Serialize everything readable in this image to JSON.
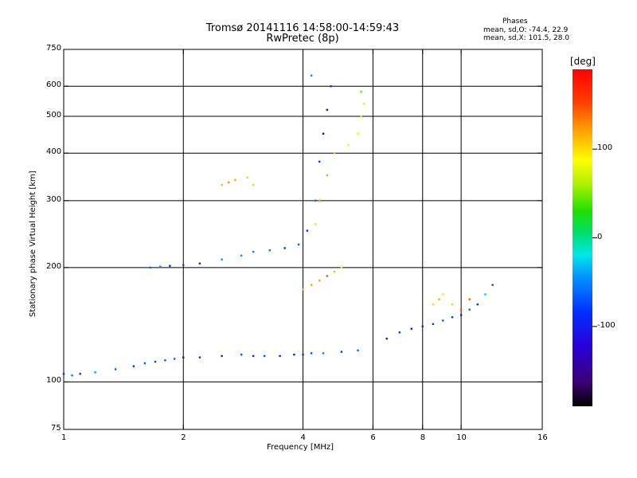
{
  "header": {
    "title": "Tromsø 20141116 14:58:00-14:59:43",
    "subtitle": "RwPretec (8p)"
  },
  "phases": {
    "heading": "Phases",
    "line_o": "mean, sd,O: -74.4, 22.9",
    "line_x": "mean, sd,X: 101.5, 28.0"
  },
  "colorbar": {
    "label": "[deg]",
    "ticks": [
      "100",
      "0",
      "-100"
    ],
    "tick_values": [
      100,
      0,
      -100
    ],
    "range": [
      -190,
      190
    ],
    "colormap": "rainbow"
  },
  "chart_data": {
    "type": "scatter",
    "title": "Tromsø 20141116 14:58:00-14:59:43",
    "subtitle": "RwPretec (8p)",
    "xlabel": "Frequency [MHz]",
    "ylabel": "Stationary phase Virtual Height [km]",
    "x_scale": "log",
    "y_scale": "log",
    "xlim": [
      1,
      16
    ],
    "ylim": [
      75,
      750
    ],
    "xticks": [
      1,
      2,
      4,
      6,
      8,
      10,
      16
    ],
    "xtick_labels": [
      "1",
      "2",
      "4",
      "6",
      "8",
      "10",
      "16"
    ],
    "x_gridlines": [
      2,
      4,
      6,
      8,
      10
    ],
    "yticks": [
      75,
      100,
      200,
      300,
      400,
      500,
      600,
      750
    ],
    "ytick_labels": [
      "75",
      "100",
      "200",
      "300",
      "400",
      "500",
      "600",
      "750"
    ],
    "y_gridlines": [
      100,
      200,
      300,
      400,
      500,
      600
    ],
    "grid": true,
    "color_variable": "phase (deg)",
    "series": [
      {
        "trace": "O-mode",
        "phase_mean": -74.4,
        "phase_sd": 22.9,
        "points": [
          {
            "f": 1.0,
            "h": 105
          },
          {
            "f": 1.05,
            "h": 104
          },
          {
            "f": 1.1,
            "h": 105
          },
          {
            "f": 1.2,
            "h": 106
          },
          {
            "f": 1.35,
            "h": 108
          },
          {
            "f": 1.5,
            "h": 110
          },
          {
            "f": 1.6,
            "h": 112
          },
          {
            "f": 1.7,
            "h": 113
          },
          {
            "f": 1.8,
            "h": 114
          },
          {
            "f": 1.9,
            "h": 115
          },
          {
            "f": 2.0,
            "h": 116
          },
          {
            "f": 2.2,
            "h": 116
          },
          {
            "f": 2.5,
            "h": 117
          },
          {
            "f": 2.8,
            "h": 118
          },
          {
            "f": 3.0,
            "h": 117
          },
          {
            "f": 3.2,
            "h": 117
          },
          {
            "f": 3.5,
            "h": 117
          },
          {
            "f": 3.8,
            "h": 118
          },
          {
            "f": 4.0,
            "h": 118
          },
          {
            "f": 4.2,
            "h": 119
          },
          {
            "f": 4.5,
            "h": 119
          },
          {
            "f": 5.0,
            "h": 120
          },
          {
            "f": 5.5,
            "h": 121
          },
          {
            "f": 1.65,
            "h": 200
          },
          {
            "f": 1.75,
            "h": 201
          },
          {
            "f": 1.85,
            "h": 202
          },
          {
            "f": 2.0,
            "h": 203
          },
          {
            "f": 2.2,
            "h": 205
          },
          {
            "f": 2.5,
            "h": 210
          },
          {
            "f": 2.8,
            "h": 215
          },
          {
            "f": 3.0,
            "h": 220
          },
          {
            "f": 3.3,
            "h": 222
          },
          {
            "f": 3.6,
            "h": 225
          },
          {
            "f": 3.9,
            "h": 230
          },
          {
            "f": 4.1,
            "h": 250
          },
          {
            "f": 4.3,
            "h": 300
          },
          {
            "f": 4.4,
            "h": 380
          },
          {
            "f": 4.5,
            "h": 450
          },
          {
            "f": 4.6,
            "h": 520
          },
          {
            "f": 4.7,
            "h": 600
          },
          {
            "f": 4.2,
            "h": 640
          },
          {
            "f": 6.5,
            "h": 130
          },
          {
            "f": 7.0,
            "h": 135
          },
          {
            "f": 7.5,
            "h": 138
          },
          {
            "f": 8.0,
            "h": 140
          },
          {
            "f": 8.5,
            "h": 142
          },
          {
            "f": 9.0,
            "h": 145
          },
          {
            "f": 9.5,
            "h": 148
          },
          {
            "f": 10.0,
            "h": 150
          },
          {
            "f": 10.5,
            "h": 155
          },
          {
            "f": 11.0,
            "h": 160
          },
          {
            "f": 11.5,
            "h": 170
          },
          {
            "f": 12.0,
            "h": 180
          }
        ]
      },
      {
        "trace": "X-mode",
        "phase_mean": 101.5,
        "phase_sd": 28.0,
        "points": [
          {
            "f": 2.5,
            "h": 330
          },
          {
            "f": 2.6,
            "h": 335
          },
          {
            "f": 2.7,
            "h": 340
          },
          {
            "f": 2.9,
            "h": 345
          },
          {
            "f": 3.0,
            "h": 330
          },
          {
            "f": 4.0,
            "h": 175
          },
          {
            "f": 4.2,
            "h": 180
          },
          {
            "f": 4.4,
            "h": 185
          },
          {
            "f": 4.6,
            "h": 190
          },
          {
            "f": 4.8,
            "h": 195
          },
          {
            "f": 5.0,
            "h": 200
          },
          {
            "f": 4.3,
            "h": 260
          },
          {
            "f": 4.4,
            "h": 300
          },
          {
            "f": 4.6,
            "h": 350
          },
          {
            "f": 4.8,
            "h": 400
          },
          {
            "f": 5.2,
            "h": 420
          },
          {
            "f": 5.5,
            "h": 450
          },
          {
            "f": 5.6,
            "h": 500
          },
          {
            "f": 5.7,
            "h": 540
          },
          {
            "f": 5.6,
            "h": 580
          },
          {
            "f": 8.5,
            "h": 160
          },
          {
            "f": 8.8,
            "h": 165
          },
          {
            "f": 9.0,
            "h": 170
          },
          {
            "f": 9.5,
            "h": 160
          },
          {
            "f": 10.0,
            "h": 155
          },
          {
            "f": 10.5,
            "h": 165
          }
        ]
      }
    ]
  }
}
